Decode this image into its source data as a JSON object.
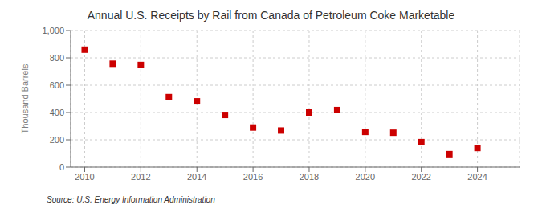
{
  "chart_data": {
    "type": "scatter",
    "title": "Annual U.S. Receipts by Rail from Canada of Petroleum Coke Marketable",
    "ylabel": "Thousand Barrels",
    "source": "Source: U.S. Energy Information Administration",
    "x": [
      2010,
      2011,
      2012,
      2013,
      2014,
      2015,
      2016,
      2017,
      2018,
      2019,
      2020,
      2021,
      2022,
      2023,
      2024
    ],
    "values": [
      860,
      757,
      748,
      513,
      482,
      382,
      290,
      268,
      400,
      418,
      258,
      252,
      183,
      95,
      140
    ],
    "color": "#cc0000",
    "marker": "square",
    "xlim": [
      2009.5,
      2025.5
    ],
    "xticks": [
      2010,
      2012,
      2014,
      2016,
      2018,
      2020,
      2022,
      2024
    ],
    "ylim": [
      0,
      1000
    ],
    "yticks": [
      0,
      200,
      400,
      600,
      800,
      {
        "value": 1000,
        "label": "1,000"
      }
    ],
    "grid": true
  }
}
